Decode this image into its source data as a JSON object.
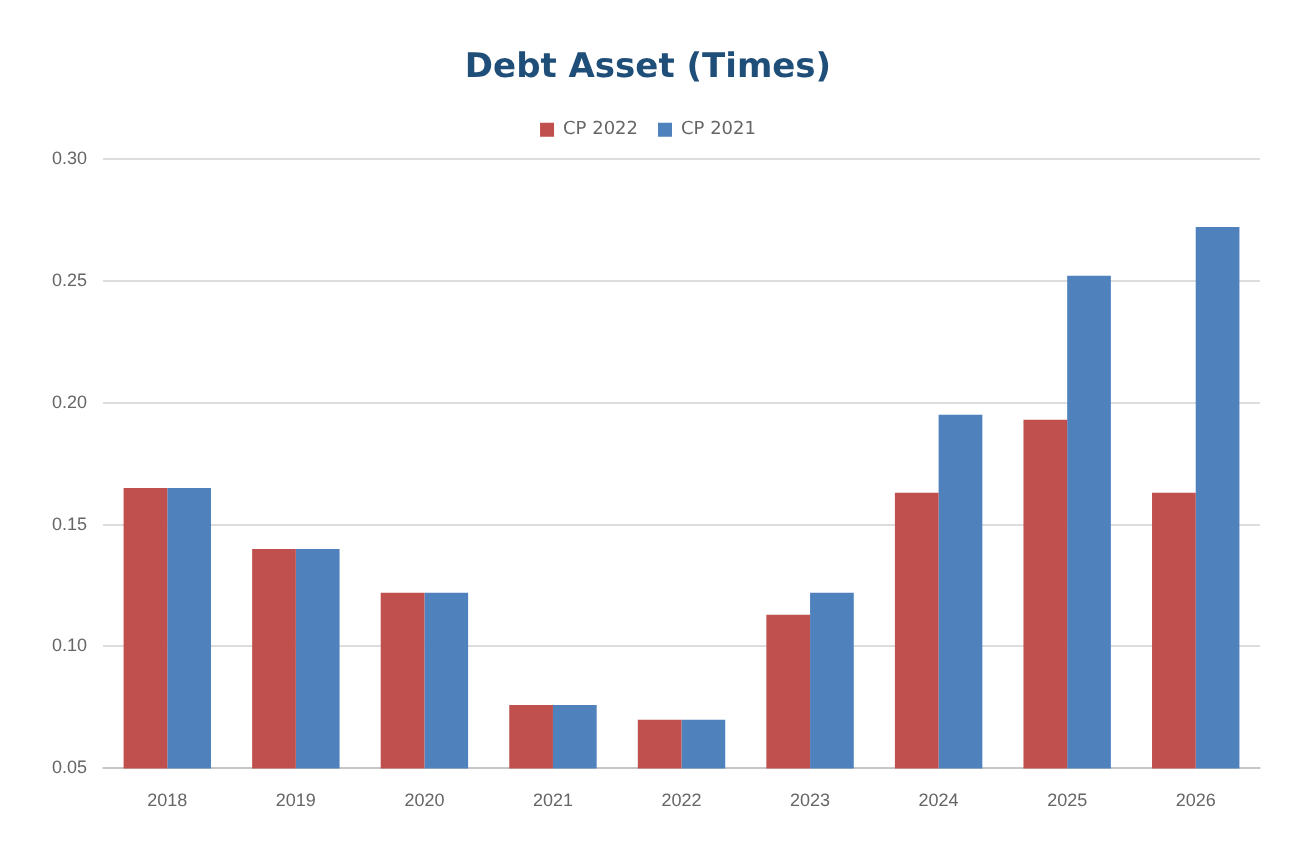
{
  "chart_data": {
    "type": "bar",
    "title": "Debt Asset (Times)",
    "categories": [
      "2018",
      "2019",
      "2020",
      "2021",
      "2022",
      "2023",
      "2024",
      "2025",
      "2026"
    ],
    "series": [
      {
        "name": "CP 2022",
        "color": "#c0504d",
        "values": [
          0.165,
          0.14,
          0.122,
          0.076,
          0.07,
          0.113,
          0.163,
          0.193,
          0.163
        ]
      },
      {
        "name": "CP 2021",
        "color": "#4f81bd",
        "values": [
          0.165,
          0.14,
          0.122,
          0.076,
          0.07,
          0.122,
          0.195,
          0.252,
          0.272
        ]
      }
    ],
    "ylim": [
      0.05,
      0.3
    ],
    "yticks": [
      {
        "value": 0.05,
        "label": "0.05"
      },
      {
        "value": 0.1,
        "label": "0.10"
      },
      {
        "value": 0.15,
        "label": "0.15"
      },
      {
        "value": 0.2,
        "label": "0.20"
      },
      {
        "value": 0.25,
        "label": "0.25"
      },
      {
        "value": 0.3,
        "label": "0.30"
      }
    ],
    "grid": "y",
    "legend": "top"
  }
}
